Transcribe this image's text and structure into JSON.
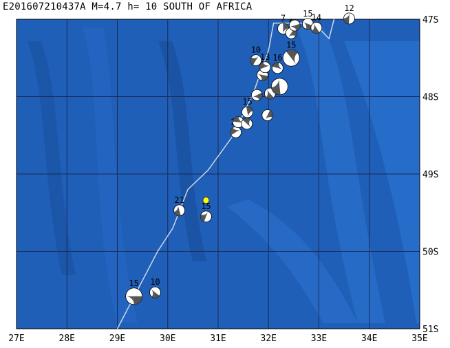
{
  "title": "E201607210437A M=4.7 h= 10 SOUTH OF AFRICA",
  "map": {
    "lon_range": [
      27,
      35
    ],
    "lat_range": [
      -51,
      -47
    ],
    "x_ticks": [
      "27E",
      "28E",
      "29E",
      "30E",
      "31E",
      "32E",
      "33E",
      "34E",
      "35E"
    ],
    "y_ticks": [
      "47S",
      "48S",
      "49S",
      "50S",
      "51S"
    ],
    "ocean_color": "#1f5fb8",
    "grid_color": "#1a2a55",
    "ridge_color": "#cfd8e6",
    "epicenter_color": "#ffff00"
  },
  "ridge_path": [
    {
      "lon": 29.0,
      "lat": -51.0
    },
    {
      "lon": 29.4,
      "lat": -50.5
    },
    {
      "lon": 29.8,
      "lat": -50.0
    },
    {
      "lon": 30.1,
      "lat": -49.7
    },
    {
      "lon": 30.4,
      "lat": -49.2
    },
    {
      "lon": 30.8,
      "lat": -48.95
    },
    {
      "lon": 31.3,
      "lat": -48.5
    },
    {
      "lon": 31.7,
      "lat": -47.95
    },
    {
      "lon": 32.0,
      "lat": -47.4
    },
    {
      "lon": 32.1,
      "lat": -47.05
    },
    {
      "lon": 32.9,
      "lat": -47.05
    },
    {
      "lon": 33.2,
      "lat": -47.25
    },
    {
      "lon": 33.3,
      "lat": -47.0
    }
  ],
  "epicenter": {
    "lon": 30.76,
    "lat": -49.34
  },
  "events": [
    {
      "lon": 29.33,
      "lat": -50.58,
      "label": "15",
      "size": "large"
    },
    {
      "lon": 29.75,
      "lat": -50.53,
      "label": "10",
      "size": "small"
    },
    {
      "lon": 30.23,
      "lat": -49.47,
      "label": "21",
      "size": "small"
    },
    {
      "lon": 30.76,
      "lat": -49.55,
      "label": "15",
      "size": "small"
    },
    {
      "lon": 31.35,
      "lat": -48.46,
      "label": "24",
      "size": "small"
    },
    {
      "lon": 31.4,
      "lat": -48.33,
      "label": "",
      "size": "small"
    },
    {
      "lon": 31.57,
      "lat": -48.35,
      "label": "",
      "size": "small"
    },
    {
      "lon": 31.58,
      "lat": -48.2,
      "label": "15",
      "size": "small"
    },
    {
      "lon": 31.98,
      "lat": -48.24,
      "label": "",
      "size": "small"
    },
    {
      "lon": 31.77,
      "lat": -47.98,
      "label": "",
      "size": "small"
    },
    {
      "lon": 31.88,
      "lat": -47.72,
      "label": "1",
      "size": "small"
    },
    {
      "lon": 32.03,
      "lat": -47.96,
      "label": "",
      "size": "small"
    },
    {
      "lon": 32.22,
      "lat": -47.87,
      "label": "",
      "size": "large"
    },
    {
      "lon": 31.75,
      "lat": -47.53,
      "label": "10",
      "size": "small"
    },
    {
      "lon": 31.93,
      "lat": -47.62,
      "label": "13",
      "size": "small"
    },
    {
      "lon": 32.18,
      "lat": -47.63,
      "label": "16",
      "size": "small"
    },
    {
      "lon": 32.45,
      "lat": -47.5,
      "label": "15",
      "size": "large"
    },
    {
      "lon": 32.29,
      "lat": -47.12,
      "label": "7",
      "size": "small"
    },
    {
      "lon": 32.45,
      "lat": -47.18,
      "label": "5",
      "size": "small"
    },
    {
      "lon": 32.52,
      "lat": -47.08,
      "label": "",
      "size": "small"
    },
    {
      "lon": 32.78,
      "lat": -47.06,
      "label": "15",
      "size": "small"
    },
    {
      "lon": 32.95,
      "lat": -47.11,
      "label": "14",
      "size": "small"
    },
    {
      "lon": 33.6,
      "lat": -46.99,
      "label": "12",
      "size": "small"
    }
  ]
}
